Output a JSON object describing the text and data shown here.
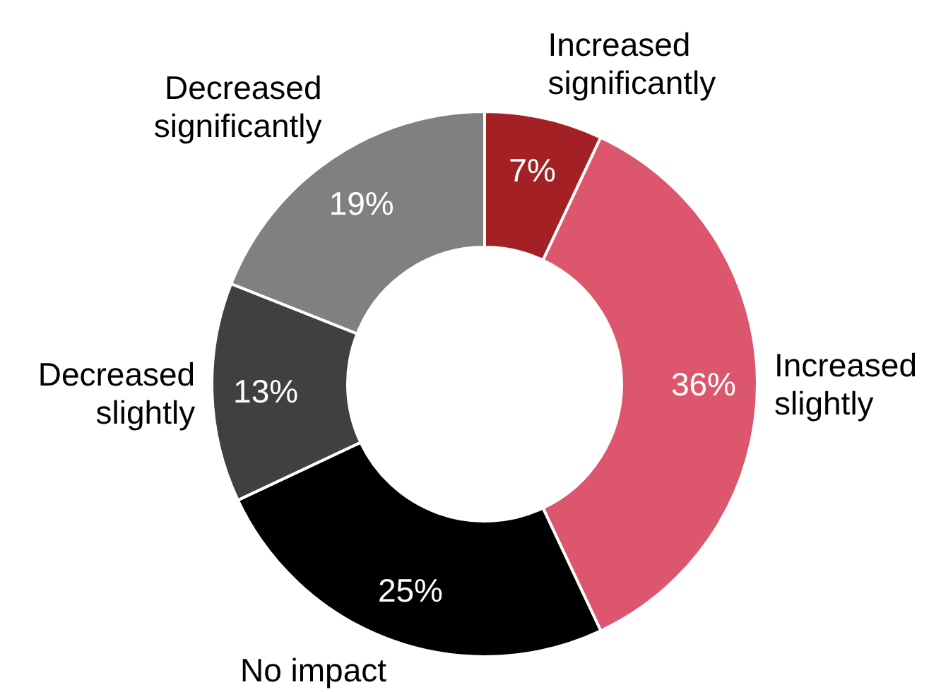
{
  "chart_data": {
    "type": "donut",
    "categories": [
      "Increased significantly",
      "Increased slightly",
      "No impact",
      "Decreased slightly",
      "Decreased significantly"
    ],
    "values": [
      7,
      36,
      25,
      13,
      19
    ],
    "colors": [
      "#a32124",
      "#dc566d",
      "#000000",
      "#404040",
      "#808080"
    ],
    "data_labels": true,
    "value_labels": [
      "7%",
      "36%",
      "25%",
      "13%",
      "19%"
    ]
  }
}
